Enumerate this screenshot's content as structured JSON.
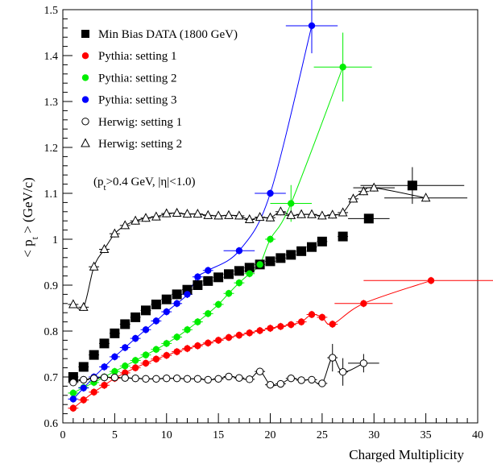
{
  "chart_data": {
    "type": "scatter",
    "xlabel": "Charged Multiplicity",
    "ylabel": "< p",
    "ylabel_sub": "t",
    "ylabel_rest": " > (GeV/c)",
    "xlim": [
      0,
      40
    ],
    "ylim": [
      0.6,
      1.5
    ],
    "x_ticks": [
      0,
      5,
      10,
      15,
      20,
      25,
      30,
      35,
      40
    ],
    "y_ticks": [
      0.6,
      0.7,
      0.8,
      0.9,
      1.0,
      1.1,
      1.2,
      1.3,
      1.4,
      1.5
    ],
    "y_tick_labels": [
      "0.6",
      "0.7",
      "0.8",
      "0.9",
      "1",
      "1.1",
      "1.2",
      "1.3",
      "1.4",
      "1.5"
    ],
    "grid": false,
    "legend_position": "top-left",
    "annotation": {
      "pre": "(p",
      "sub": "t",
      "post": ">0.4 GeV, |η|<1.0)"
    },
    "series": [
      {
        "name": "Min Bias DATA (1800 GeV)",
        "marker": "square-filled",
        "color": "#000000",
        "points": [
          [
            1,
            0.7
          ],
          [
            2,
            0.722
          ],
          [
            3,
            0.748
          ],
          [
            4,
            0.773
          ],
          [
            5,
            0.795
          ],
          [
            6,
            0.815
          ],
          [
            7,
            0.83
          ],
          [
            8,
            0.845
          ],
          [
            9,
            0.858
          ],
          [
            10,
            0.869
          ],
          [
            11,
            0.88
          ],
          [
            12,
            0.89
          ],
          [
            13,
            0.9
          ],
          [
            14,
            0.909
          ],
          [
            15,
            0.917
          ],
          [
            16,
            0.924
          ],
          [
            17,
            0.931
          ],
          [
            18,
            0.938
          ],
          [
            19,
            0.945
          ],
          [
            20,
            0.952
          ],
          [
            21,
            0.959
          ],
          [
            22,
            0.966
          ],
          [
            23,
            0.974
          ],
          [
            24,
            0.983
          ],
          [
            25,
            0.995
          ],
          [
            27,
            1.006
          ],
          [
            29.5,
            1.045
          ],
          [
            33.7,
            1.117
          ]
        ],
        "xerr_wide": [
          [
            29.5,
            2.0
          ],
          [
            33.7,
            5.0
          ]
        ],
        "yerr_wide": [
          [
            33.7,
            0.04
          ]
        ]
      },
      {
        "name": "Pythia: setting 1",
        "marker": "circle-filled",
        "color": "#ff0000",
        "points": [
          [
            1,
            0.632
          ],
          [
            2,
            0.65
          ],
          [
            3,
            0.667
          ],
          [
            4,
            0.682
          ],
          [
            5,
            0.697
          ],
          [
            6,
            0.709
          ],
          [
            7,
            0.72
          ],
          [
            8,
            0.73
          ],
          [
            9,
            0.739
          ],
          [
            10,
            0.747
          ],
          [
            11,
            0.755
          ],
          [
            12,
            0.762
          ],
          [
            13,
            0.768
          ],
          [
            14,
            0.774
          ],
          [
            15,
            0.78
          ],
          [
            16,
            0.786
          ],
          [
            17,
            0.791
          ],
          [
            18,
            0.796
          ],
          [
            19,
            0.801
          ],
          [
            20,
            0.806
          ],
          [
            21,
            0.81
          ],
          [
            22,
            0.814
          ],
          [
            23,
            0.82
          ],
          [
            24,
            0.836
          ],
          [
            25,
            0.83
          ],
          [
            26,
            0.815
          ],
          [
            29,
            0.86
          ],
          [
            35.5,
            0.91
          ]
        ],
        "xerr_wide": [
          [
            29,
            2.8
          ],
          [
            35.5,
            6.5
          ]
        ]
      },
      {
        "name": "Pythia: setting 2",
        "marker": "circle-filled",
        "color": "#00ee00",
        "points": [
          [
            1,
            0.665
          ],
          [
            2,
            0.677
          ],
          [
            3,
            0.688
          ],
          [
            4,
            0.7
          ],
          [
            5,
            0.712
          ],
          [
            6,
            0.724
          ],
          [
            7,
            0.736
          ],
          [
            8,
            0.748
          ],
          [
            9,
            0.76
          ],
          [
            10,
            0.773
          ],
          [
            11,
            0.787
          ],
          [
            12,
            0.803
          ],
          [
            13,
            0.82
          ],
          [
            14,
            0.838
          ],
          [
            15,
            0.858
          ],
          [
            16,
            0.882
          ],
          [
            17,
            0.905
          ],
          [
            18,
            0.925
          ],
          [
            19,
            0.945
          ],
          [
            20,
            1.0
          ],
          [
            22,
            1.078
          ],
          [
            27,
            1.375
          ]
        ],
        "xerr_wide": [
          [
            22,
            2.0
          ],
          [
            27,
            2.8
          ]
        ],
        "yerr_wide": [
          [
            22,
            0.04
          ],
          [
            27,
            0.075
          ]
        ]
      },
      {
        "name": "Pythia: setting 3",
        "marker": "circle-filled",
        "color": "#0000ff",
        "points": [
          [
            1,
            0.652
          ],
          [
            2,
            0.676
          ],
          [
            3,
            0.7
          ],
          [
            4,
            0.722
          ],
          [
            5,
            0.744
          ],
          [
            6,
            0.764
          ],
          [
            7,
            0.784
          ],
          [
            8,
            0.803
          ],
          [
            9,
            0.822
          ],
          [
            10,
            0.842
          ],
          [
            11,
            0.86
          ],
          [
            12,
            0.88
          ],
          [
            13,
            0.918
          ],
          [
            14,
            0.932
          ],
          [
            17,
            0.975
          ],
          [
            20,
            1.1
          ],
          [
            24,
            1.465
          ]
        ],
        "xerr_wide": [
          [
            17,
            1.5
          ],
          [
            20,
            1.5
          ],
          [
            24,
            2.5
          ]
        ],
        "yerr_wide": [
          [
            24,
            0.06
          ]
        ]
      },
      {
        "name": "Herwig: setting 1",
        "marker": "circle-open",
        "color": "#000000",
        "points": [
          [
            1,
            0.688
          ],
          [
            2,
            0.694
          ],
          [
            3,
            0.697
          ],
          [
            4,
            0.699
          ],
          [
            5,
            0.699
          ],
          [
            6,
            0.698
          ],
          [
            7,
            0.697
          ],
          [
            8,
            0.696
          ],
          [
            9,
            0.696
          ],
          [
            10,
            0.697
          ],
          [
            11,
            0.697
          ],
          [
            12,
            0.696
          ],
          [
            13,
            0.696
          ],
          [
            14,
            0.694
          ],
          [
            15,
            0.696
          ],
          [
            16,
            0.701
          ],
          [
            17,
            0.698
          ],
          [
            18,
            0.695
          ],
          [
            19,
            0.712
          ],
          [
            20,
            0.683
          ],
          [
            21,
            0.685
          ],
          [
            22,
            0.697
          ],
          [
            23,
            0.693
          ],
          [
            24,
            0.694
          ],
          [
            25,
            0.686
          ],
          [
            26,
            0.742
          ],
          [
            27,
            0.711
          ],
          [
            29,
            0.73
          ]
        ],
        "xerr_wide": [
          [
            29,
            1.5
          ]
        ],
        "yerr_wide": [
          [
            26,
            0.03
          ],
          [
            27,
            0.03
          ],
          [
            29,
            0.02
          ]
        ]
      },
      {
        "name": "Herwig: setting 2",
        "marker": "triangle-open",
        "color": "#000000",
        "points": [
          [
            1,
            0.858
          ],
          [
            2,
            0.852
          ],
          [
            3,
            0.94
          ],
          [
            4,
            0.978
          ],
          [
            5,
            1.012
          ],
          [
            6,
            1.03
          ],
          [
            7,
            1.04
          ],
          [
            8,
            1.046
          ],
          [
            9,
            1.049
          ],
          [
            10,
            1.056
          ],
          [
            11,
            1.057
          ],
          [
            12,
            1.055
          ],
          [
            13,
            1.055
          ],
          [
            14,
            1.052
          ],
          [
            15,
            1.051
          ],
          [
            16,
            1.052
          ],
          [
            17,
            1.051
          ],
          [
            18,
            1.043
          ],
          [
            19,
            1.048
          ],
          [
            20,
            1.047
          ],
          [
            21,
            1.06
          ],
          [
            22,
            1.052
          ],
          [
            23,
            1.054
          ],
          [
            24,
            1.054
          ],
          [
            25,
            1.051
          ],
          [
            26,
            1.053
          ],
          [
            27,
            1.058
          ],
          [
            28,
            1.088
          ],
          [
            29,
            1.104
          ],
          [
            30,
            1.112
          ],
          [
            35,
            1.09
          ]
        ],
        "xerr_wide": [
          [
            30,
            2.0
          ],
          [
            35,
            4.0
          ]
        ]
      }
    ]
  }
}
